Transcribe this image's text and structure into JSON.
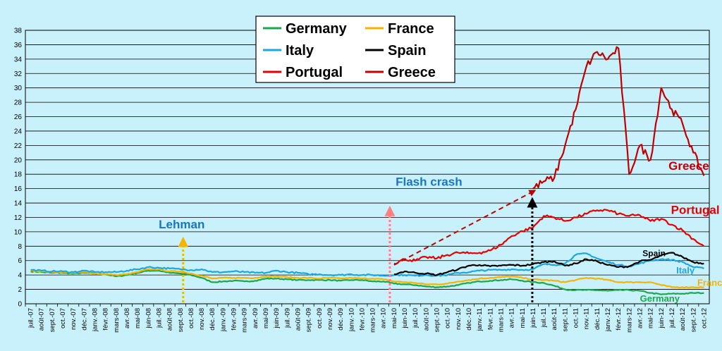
{
  "chart_data": {
    "type": "line",
    "title": "",
    "xlabel": "",
    "ylabel": "",
    "ylim": [
      0,
      38
    ],
    "y_ticks": [
      0,
      2,
      4,
      6,
      8,
      10,
      12,
      14,
      16,
      18,
      20,
      22,
      24,
      26,
      28,
      30,
      32,
      34,
      36,
      38
    ],
    "grid": "horizontal",
    "legend_position": "top-center",
    "x_tick_labels": [
      "juil.-07",
      "août-07",
      "sept.-07",
      "oct.-07",
      "nov.-07",
      "déc.-07",
      "janv.-08",
      "févr.-08",
      "mars-08",
      "avr.-08",
      "mai-08",
      "juin-08",
      "juil.-08",
      "août-08",
      "sept.-08",
      "oct.-08",
      "nov.-08",
      "déc.-08",
      "janv.-09",
      "févr.-09",
      "mars-09",
      "avr.-09",
      "mai-09",
      "juin-09",
      "juil.-09",
      "août-09",
      "sept.-09",
      "oct.-09",
      "nov.-09",
      "déc.-09",
      "janv.-10",
      "févr.-10",
      "mars-10",
      "avr.-10",
      "mai-10",
      "juin-10",
      "juil.-10",
      "août-10",
      "sept.-10",
      "oct.-10",
      "nov.-10",
      "déc.-10",
      "janv.-11",
      "févr.-11",
      "mars-11",
      "avr.-11",
      "mai-11",
      "juin-11",
      "juil.-11",
      "août-11",
      "sept.-11",
      "oct.-11",
      "nov.-11",
      "déc.-11",
      "janv.-12",
      "févr.-12",
      "mars-12",
      "avr.-12",
      "mai-12",
      "juin-12",
      "juil.-12",
      "août-12",
      "sept.-12",
      "oct.-12"
    ],
    "series": [
      {
        "name": "Germany",
        "color": "#1aa84a",
        "values": [
          4.5,
          4.4,
          4.3,
          4.3,
          4.2,
          4.3,
          4.2,
          4.1,
          3.8,
          4.0,
          4.3,
          4.6,
          4.6,
          4.3,
          4.2,
          4.0,
          3.6,
          3.0,
          3.1,
          3.2,
          3.1,
          3.2,
          3.5,
          3.5,
          3.4,
          3.3,
          3.3,
          3.3,
          3.3,
          3.2,
          3.3,
          3.3,
          3.1,
          3.1,
          2.8,
          2.7,
          2.6,
          2.4,
          2.3,
          2.4,
          2.6,
          2.9,
          3.1,
          3.2,
          3.3,
          3.4,
          3.2,
          3.0,
          2.9,
          2.5,
          2.0,
          1.9,
          1.9,
          1.9,
          1.8,
          1.9,
          1.9,
          1.8,
          1.5,
          1.3,
          1.4,
          1.4,
          1.5,
          1.5
        ]
      },
      {
        "name": "France",
        "color": "#f5b400",
        "values": [
          4.6,
          4.5,
          4.4,
          4.4,
          4.3,
          4.4,
          4.2,
          4.1,
          4.0,
          4.1,
          4.4,
          4.8,
          4.8,
          4.5,
          4.5,
          4.2,
          3.9,
          3.5,
          3.6,
          3.6,
          3.6,
          3.6,
          3.8,
          3.8,
          3.7,
          3.6,
          3.6,
          3.5,
          3.6,
          3.5,
          3.6,
          3.5,
          3.5,
          3.4,
          3.1,
          3.0,
          2.9,
          2.7,
          2.7,
          2.8,
          3.1,
          3.3,
          3.5,
          3.6,
          3.7,
          3.8,
          3.6,
          3.4,
          3.3,
          3.2,
          3.0,
          3.3,
          3.6,
          3.5,
          3.3,
          3.0,
          3.0,
          3.0,
          3.0,
          2.6,
          2.3,
          2.3,
          2.3,
          2.3
        ]
      },
      {
        "name": "Italy",
        "color": "#1ca7e0",
        "values": [
          4.7,
          4.6,
          4.5,
          4.5,
          4.4,
          4.6,
          4.4,
          4.4,
          4.4,
          4.6,
          4.8,
          5.1,
          5.0,
          4.9,
          4.8,
          4.7,
          4.8,
          4.4,
          4.4,
          4.5,
          4.4,
          4.3,
          4.3,
          4.6,
          4.4,
          4.3,
          4.1,
          4.1,
          4.0,
          4.0,
          4.1,
          4.0,
          4.0,
          3.9,
          4.0,
          4.0,
          3.9,
          4.0,
          3.9,
          4.0,
          4.3,
          4.4,
          4.6,
          4.7,
          4.7,
          4.8,
          4.7,
          4.8,
          5.5,
          5.4,
          5.6,
          6.8,
          7.0,
          6.3,
          5.8,
          5.4,
          5.2,
          5.6,
          6.0,
          6.2,
          6.1,
          5.8,
          5.1,
          4.9
        ]
      },
      {
        "name": "Spain",
        "color": "#000000",
        "values": [
          null,
          null,
          null,
          null,
          null,
          null,
          null,
          null,
          null,
          null,
          null,
          null,
          null,
          null,
          null,
          null,
          null,
          null,
          null,
          null,
          null,
          null,
          null,
          null,
          null,
          null,
          null,
          null,
          null,
          null,
          null,
          null,
          null,
          null,
          4.1,
          4.5,
          4.3,
          4.2,
          4.0,
          4.4,
          4.8,
          5.3,
          5.4,
          5.2,
          5.3,
          5.4,
          5.3,
          5.5,
          5.8,
          5.9,
          5.3,
          5.6,
          6.2,
          5.9,
          5.4,
          5.1,
          5.2,
          5.9,
          6.1,
          6.7,
          7.1,
          6.5,
          5.8,
          5.6
        ]
      },
      {
        "name": "Portugal",
        "color": "#e60000",
        "values": [
          null,
          null,
          null,
          null,
          null,
          null,
          null,
          null,
          null,
          null,
          null,
          null,
          null,
          null,
          null,
          null,
          null,
          null,
          null,
          null,
          null,
          null,
          null,
          null,
          null,
          null,
          null,
          null,
          null,
          null,
          null,
          null,
          null,
          null,
          5.6,
          6.2,
          6.0,
          6.5,
          6.3,
          6.8,
          7.1,
          7.0,
          7.1,
          7.4,
          8.2,
          9.4,
          10.1,
          10.6,
          12.2,
          12.0,
          11.5,
          12.0,
          12.5,
          13.0,
          13.0,
          12.5,
          12.2,
          12.3,
          11.5,
          11.8,
          11.0,
          10.2,
          9.0,
          8.0
        ]
      },
      {
        "name": "Greece",
        "color": "#c00000",
        "values": [
          null,
          null,
          null,
          null,
          null,
          null,
          null,
          null,
          null,
          null,
          null,
          null,
          null,
          null,
          null,
          null,
          null,
          null,
          null,
          null,
          null,
          null,
          null,
          null,
          null,
          null,
          null,
          null,
          null,
          null,
          null,
          null,
          null,
          null,
          null,
          null,
          null,
          null,
          null,
          null,
          null,
          null,
          null,
          null,
          null,
          null,
          null,
          16.0,
          17.0,
          17.5,
          22.0,
          27.0,
          33.0,
          35.0,
          34.0,
          35.5,
          18.0,
          22.0,
          20.0,
          30.0,
          27.0,
          25.0,
          21.0,
          17.8
        ]
      }
    ],
    "annotations": [
      {
        "text": "Lehman",
        "color": "#1a75c4",
        "arrow_color": "#f5b400",
        "at": "sept.-08"
      },
      {
        "text": "Flash crash",
        "color": "#1a75c4",
        "arrow_color": "#ff8080",
        "at": "mai-10"
      },
      {
        "text": "Greece",
        "color": "#c00000"
      },
      {
        "text": "Portugal",
        "color": "#e60000"
      },
      {
        "text": "Spain",
        "color": "#000000"
      },
      {
        "text": "Italy",
        "color": "#1ca7e0"
      },
      {
        "text": "France",
        "color": "#f5b400"
      },
      {
        "text": "Germany",
        "color": "#1aa84a"
      }
    ],
    "colors": {
      "background": "#c9f1fb",
      "grid": "#000000"
    }
  }
}
